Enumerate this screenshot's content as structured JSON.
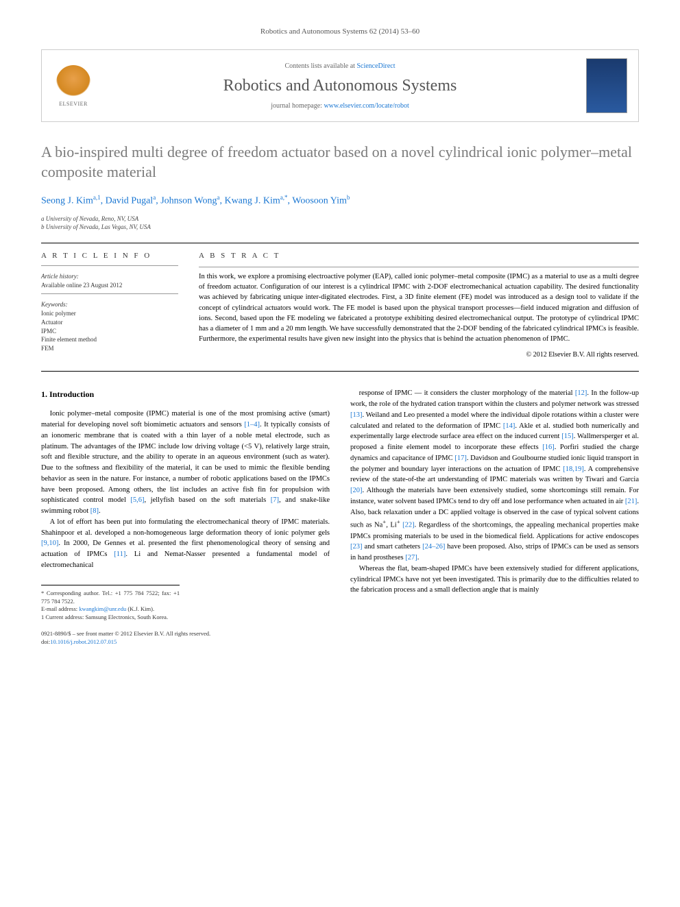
{
  "journal_ref": "Robotics and Autonomous Systems 62 (2014) 53–60",
  "header": {
    "contents_prefix": "Contents lists available at ",
    "contents_link": "ScienceDirect",
    "journal_name": "Robotics and Autonomous Systems",
    "homepage_prefix": "journal homepage: ",
    "homepage_link": "www.elsevier.com/locate/robot",
    "elsevier_label": "ELSEVIER"
  },
  "title": "A bio-inspired multi degree of freedom actuator based on a novel cylindrical ionic polymer–metal composite material",
  "authors_html": "Seong J. Kim<sup>a,1</sup>, David Pugal<sup>a</sup>, Johnson Wong<sup>a</sup>, Kwang J. Kim<sup>a,*</sup>, Woosoon Yim<sup>b</sup>",
  "affiliations": [
    "a University of Nevada, Reno, NV, USA",
    "b University of Nevada, Las Vegas, NV, USA"
  ],
  "info": {
    "heading": "A R T I C L E   I N F O",
    "history_label": "Article history:",
    "history_text": "Available online 23 August 2012",
    "keywords_label": "Keywords:",
    "keywords": [
      "Ionic polymer",
      "Actuator",
      "IPMC",
      "Finite element method",
      "FEM"
    ]
  },
  "abstract": {
    "heading": "A B S T R A C T",
    "text": "In this work, we explore a promising electroactive polymer (EAP), called ionic polymer–metal composite (IPMC) as a material to use as a multi degree of freedom actuator. Configuration of our interest is a cylindrical IPMC with 2-DOF electromechanical actuation capability. The desired functionality was achieved by fabricating unique inter-digitated electrodes. First, a 3D finite element (FE) model was introduced as a design tool to validate if the concept of cylindrical actuators would work. The FE model is based upon the physical transport processes—field induced migration and diffusion of ions. Second, based upon the FE modeling we fabricated a prototype exhibiting desired electromechanical output. The prototype of cylindrical IPMC has a diameter of 1 mm and a 20 mm length. We have successfully demonstrated that the 2-DOF bending of the fabricated cylindrical IPMCs is feasible. Furthermore, the experimental results have given new insight into the physics that is behind the actuation phenomenon of IPMC.",
    "copyright": "© 2012 Elsevier B.V. All rights reserved."
  },
  "section1_heading": "1. Introduction",
  "col_left": {
    "p1": "Ionic polymer–metal composite (IPMC) material is one of the most promising active (smart) material for developing novel soft biomimetic actuators and sensors [1–4]. It typically consists of an ionomeric membrane that is coated with a thin layer of a noble metal electrode, such as platinum. The advantages of the IPMC include low driving voltage (<5 V), relatively large strain, soft and flexible structure, and the ability to operate in an aqueous environment (such as water). Due to the softness and flexibility of the material, it can be used to mimic the flexible bending behavior as seen in the nature. For instance, a number of robotic applications based on the IPMCs have been proposed. Among others, the list includes an active fish fin for propulsion with sophisticated control model [5,6], jellyfish based on the soft materials [7], and snake-like swimming robot [8].",
    "p2": "A lot of effort has been put into formulating the electromechanical theory of IPMC materials. Shahinpoor et al. developed a non-homogeneous large deformation theory of ionic polymer gels [9,10]. In 2000, De Gennes et al. presented the first phenomenological theory of sensing and actuation of IPMCs [11]. Li and Nemat-Nasser presented a fundamental model of electromechanical"
  },
  "col_right": {
    "p1": "response of IPMC — it considers the cluster morphology of the material [12]. In the follow-up work, the role of the hydrated cation transport within the clusters and polymer network was stressed [13]. Weiland and Leo presented a model where the individual dipole rotations within a cluster were calculated and related to the deformation of IPMC [14]. Akle et al. studied both numerically and experimentally large electrode surface area effect on the induced current [15]. Wallmersperger et al. proposed a finite element model to incorporate these effects [16]. Porfiri studied the charge dynamics and capacitance of IPMC [17]. Davidson and Goulbourne studied ionic liquid transport in the polymer and boundary layer interactions on the actuation of IPMC [18,19]. A comprehensive review of the state-of-the art understanding of IPMC materials was written by Tiwari and Garcia [20]. Although the materials have been extensively studied, some shortcomings still remain. For instance, water solvent based IPMCs tend to dry off and lose performance when actuated in air [21]. Also, back relaxation under a DC applied voltage is observed in the case of typical solvent cations such as Na+, Li+ [22]. Regardless of the shortcomings, the appealing mechanical properties make IPMCs promising materials to be used in the biomedical field. Applications for active endoscopes [23] and smart catheters [24–26] have been proposed. Also, strips of IPMCs can be used as sensors in hand prostheses [27].",
    "p2": "Whereas the flat, beam-shaped IPMCs have been extensively studied for different applications, cylindrical IPMCs have not yet been investigated. This is primarily due to the difficulties related to the fabrication process and a small deflection angle that is mainly"
  },
  "footnotes": {
    "corr": "* Corresponding author. Tel.: +1 775 784 7522; fax: +1 775 784 7522.",
    "email_label": "E-mail address: ",
    "email": "kwangkim@unr.edu",
    "email_suffix": " (K.J. Kim).",
    "note1": "1 Current address: Samsung Electronics, South Korea."
  },
  "bottom": {
    "issn": "0921-8890/$ – see front matter © 2012 Elsevier B.V. All rights reserved.",
    "doi_label": "doi:",
    "doi": "10.1016/j.robot.2012.07.015"
  }
}
